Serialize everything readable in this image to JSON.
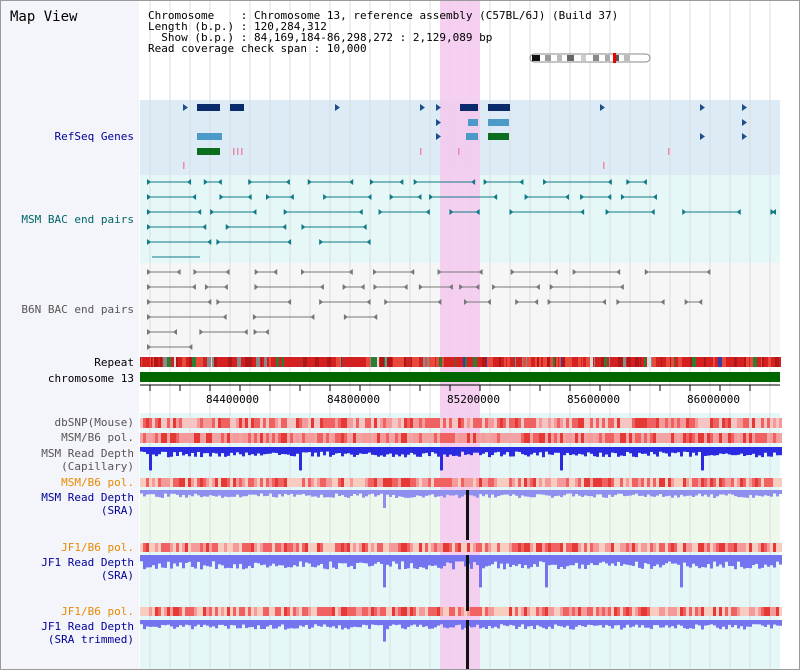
{
  "title": "Map View",
  "info": {
    "chromosome_key": "Chromosome",
    "chromosome_val": "Chromosome 13, reference assembly (C57BL/6J) (Build 37)",
    "length_key": "Length (b.p.)",
    "length_val": "120,284,312",
    "show_key": "Show (b.p.)",
    "show_val": "84,169,184-86,298,272 : 2,129,089 bp",
    "span_key": "Read coverage check span",
    "span_val": "10,000"
  },
  "tracks": {
    "refseq": "RefSeq Genes",
    "msm_bac": "MSM BAC end pairs",
    "b6n_bac": "B6N BAC end pairs",
    "repeat": "Repeat",
    "chromosome": "chromosome 13",
    "dbsnp": "dbSNP(Mouse)",
    "msm_pol": "MSM/B6 pol.",
    "msm_depth_cap_1": "MSM Read Depth",
    "msm_depth_cap_2": "(Capillary)",
    "msm_pol_2": "MSM/B6 pol.",
    "msm_depth_sra_1": "MSM Read Depth",
    "msm_depth_sra_2": "(SRA)",
    "jf1_pol": "JF1/B6 pol.",
    "jf1_depth_sra_1": "JF1 Read Depth",
    "jf1_depth_sra_2": "(SRA)",
    "jf1_pol_2": "JF1/B6 pol.",
    "jf1_depth_trim_1": "JF1 Read Depth",
    "jf1_depth_trim_2": "(SRA trimmed)"
  },
  "axis": {
    "ticks": [
      "84400000",
      "84800000",
      "85200000",
      "85600000",
      "86000000"
    ]
  },
  "colors": {
    "navy_label": "#000099",
    "teal_label": "#006666",
    "gray_label": "#555555",
    "orange_label": "#e88a00",
    "highlight": "#f5c8ee",
    "refseq_bg": "#dcebf6",
    "bac_bg": "#e6f7f7",
    "b6n_bg": "#f6f6f6",
    "chromosome_bar": "#006600"
  }
}
